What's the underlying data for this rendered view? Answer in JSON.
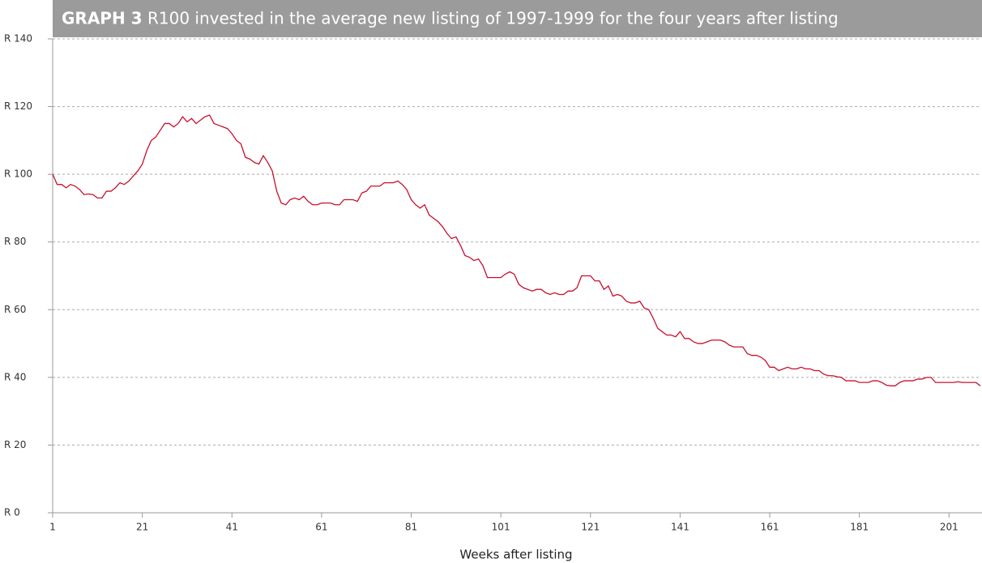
{
  "chart_data": {
    "type": "line",
    "title_label": "GRAPH 3",
    "title": "R100 invested in the average new listing of 1997-1999 for the four years after listing",
    "x_label": "Weeks after listing",
    "x": [
      1,
      2,
      3,
      4,
      5,
      6,
      7,
      8,
      9,
      10,
      11,
      12,
      13,
      14,
      15,
      16,
      17,
      18,
      19,
      20,
      21,
      22,
      23,
      24,
      25,
      26,
      27,
      28,
      29,
      30,
      31,
      32,
      33,
      34,
      35,
      36,
      37,
      38,
      39,
      40,
      41,
      42,
      43,
      44,
      45,
      46,
      47,
      48,
      49,
      50,
      51,
      52,
      53,
      54,
      55,
      56,
      57,
      58,
      59,
      60,
      61,
      62,
      63,
      64,
      65,
      66,
      67,
      68,
      69,
      70,
      71,
      72,
      73,
      74,
      75,
      76,
      77,
      78,
      79,
      80,
      81,
      82,
      83,
      84,
      85,
      86,
      87,
      88,
      89,
      90,
      91,
      92,
      93,
      94,
      95,
      96,
      97,
      98,
      99,
      100,
      101,
      102,
      103,
      104,
      105,
      106,
      107,
      108,
      109,
      110,
      111,
      112,
      113,
      114,
      115,
      116,
      117,
      118,
      119,
      120,
      121,
      122,
      123,
      124,
      125,
      126,
      127,
      128,
      129,
      130,
      131,
      132,
      133,
      134,
      135,
      136,
      137,
      138,
      139,
      140,
      141,
      142,
      143,
      144,
      145,
      146,
      147,
      148,
      149,
      150,
      151,
      152,
      153,
      154,
      155,
      156,
      157,
      158,
      159,
      160,
      161,
      162,
      163,
      164,
      165,
      166,
      167,
      168,
      169,
      170,
      171,
      172,
      173,
      174,
      175,
      176,
      177,
      178,
      179,
      180,
      181,
      182,
      183,
      184,
      185,
      186,
      187,
      188,
      189,
      190,
      191,
      192,
      193,
      194,
      195,
      196,
      197,
      198,
      199,
      200,
      201,
      202,
      203,
      204,
      205,
      206,
      207,
      208
    ],
    "series": [
      {
        "color": "#c8102e",
        "values": [
          100,
          97,
          97,
          96,
          97,
          96.5,
          95.5,
          94,
          94.2,
          94,
          93,
          93,
          95,
          95,
          96,
          97.5,
          97,
          98,
          99.5,
          101,
          103,
          107,
          110,
          111,
          113,
          115,
          115,
          114,
          115,
          117,
          115.5,
          116.5,
          115,
          116,
          117,
          117.5,
          115,
          114.5,
          114,
          113.5,
          112,
          110,
          109,
          105,
          104.5,
          103.5,
          103,
          105.5,
          103.5,
          101,
          95,
          91.5,
          91,
          92.5,
          93,
          92.5,
          93.5,
          92,
          91,
          91,
          91.5,
          91.5,
          91.5,
          91,
          91,
          92.5,
          92.5,
          92.5,
          92,
          94.5,
          95,
          96.5,
          96.5,
          96.5,
          97.5,
          97.5,
          97.5,
          98,
          97,
          95.5,
          92.5,
          91,
          90,
          91,
          88,
          87,
          86,
          84.5,
          82.5,
          81,
          81.5,
          79,
          76,
          75.5,
          74.5,
          75,
          73,
          69.5,
          69.5,
          69.5,
          69.5,
          70.5,
          71.2,
          70.5,
          67.5,
          66.5,
          66,
          65.5,
          66,
          66,
          65,
          64.5,
          65,
          64.5,
          64.5,
          65.5,
          65.5,
          66.5,
          70,
          70,
          70,
          68.5,
          68.5,
          66,
          67,
          64,
          64.5,
          64,
          62.5,
          62,
          62,
          62.5,
          60.5,
          60,
          57.5,
          54.5,
          53.5,
          52.5,
          52.5,
          52,
          53.5,
          51.5,
          51.5,
          50.5,
          50,
          50,
          50.5,
          51,
          51,
          51,
          50.5,
          49.5,
          49,
          49,
          49,
          47,
          46.5,
          46.5,
          46,
          45,
          43,
          43,
          42,
          42.5,
          43,
          42.5,
          42.5,
          43,
          42.5,
          42.5,
          42,
          42,
          41,
          40.5,
          40.5,
          40.2,
          40,
          39,
          39,
          39,
          38.5,
          38.5,
          38.5,
          39,
          39,
          38.5,
          37.7,
          37.5,
          37.5,
          38.5,
          39,
          39,
          39,
          39.5,
          39.5,
          40,
          40,
          38.5,
          38.5,
          38.5,
          38.5,
          38.5,
          38.7,
          38.5,
          38.5,
          38.5,
          38.5,
          37.5
        ]
      }
    ],
    "xlim": [
      1,
      208
    ],
    "xticks": [
      1,
      21,
      41,
      61,
      81,
      101,
      121,
      141,
      161,
      181,
      201
    ],
    "ylim": [
      0,
      140
    ],
    "yticks": [
      {
        "value": 0,
        "label": "R 0"
      },
      {
        "value": 20,
        "label": "R 20"
      },
      {
        "value": 40,
        "label": "R 40"
      },
      {
        "value": 60,
        "label": "R 60"
      },
      {
        "value": 80,
        "label": "R 80"
      },
      {
        "value": 100,
        "label": "R 100"
      },
      {
        "value": 120,
        "label": "R 120"
      },
      {
        "value": 140,
        "label": "R 140"
      }
    ],
    "grid": true
  }
}
